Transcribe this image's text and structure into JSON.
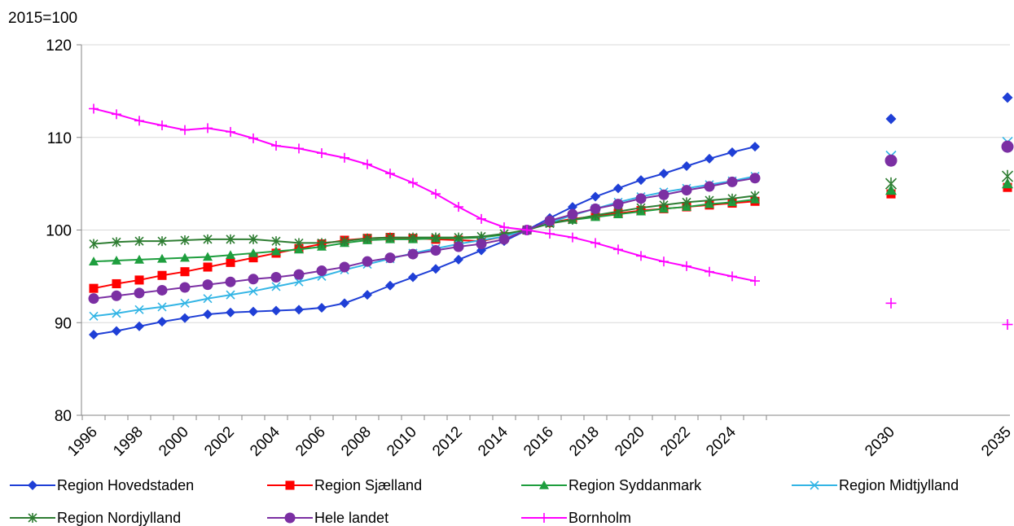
{
  "chart_data": {
    "type": "line",
    "unit_label": "2015=100",
    "ylim": [
      80,
      120
    ],
    "y_ticks": [
      80,
      90,
      100,
      110,
      120
    ],
    "x_tick_labels": [
      "1996",
      "1998",
      "2000",
      "2002",
      "2004",
      "2006",
      "2008",
      "2010",
      "2012",
      "2014",
      "2016",
      "2018",
      "2020",
      "2022",
      "2024",
      "2030",
      "2035"
    ],
    "grid": "horizontal",
    "legend_position": "bottom",
    "years": [
      1996,
      1997,
      1998,
      1999,
      2000,
      2001,
      2002,
      2003,
      2004,
      2005,
      2006,
      2007,
      2008,
      2009,
      2010,
      2011,
      2012,
      2013,
      2014,
      2015,
      2016,
      2017,
      2018,
      2019,
      2020,
      2021,
      2022,
      2023,
      2024,
      2025
    ],
    "forecast_years": [
      2030,
      2035
    ],
    "series": [
      {
        "name": "Region Hovedstaden",
        "color": "#1f3fd6",
        "marker": "diamond",
        "values": [
          88.7,
          89.1,
          89.6,
          90.1,
          90.5,
          90.9,
          91.1,
          91.2,
          91.3,
          91.4,
          91.6,
          92.1,
          93.0,
          94.0,
          94.9,
          95.8,
          96.8,
          97.8,
          98.8,
          100,
          101.3,
          102.5,
          103.6,
          104.5,
          105.4,
          106.1,
          106.9,
          107.7,
          108.4,
          109.0
        ],
        "forecast": [
          112.0,
          114.3
        ]
      },
      {
        "name": "Region Sjælland",
        "color": "#ff0000",
        "marker": "square",
        "values": [
          93.7,
          94.2,
          94.6,
          95.1,
          95.5,
          96.0,
          96.5,
          97.0,
          97.5,
          98.0,
          98.5,
          98.9,
          99.1,
          99.2,
          99.1,
          99.0,
          98.9,
          98.8,
          99.3,
          100,
          100.8,
          101.2,
          101.5,
          101.8,
          102.1,
          102.3,
          102.5,
          102.7,
          102.9,
          103.1
        ],
        "forecast": [
          103.9,
          104.6
        ]
      },
      {
        "name": "Region Syddanmark",
        "color": "#1e9e3e",
        "marker": "triangle",
        "values": [
          96.6,
          96.7,
          96.8,
          96.9,
          97.0,
          97.1,
          97.3,
          97.5,
          97.7,
          97.9,
          98.2,
          98.6,
          98.9,
          99.0,
          99.0,
          99.1,
          99.1,
          99.2,
          99.5,
          100,
          100.8,
          101.1,
          101.4,
          101.7,
          102.0,
          102.3,
          102.5,
          102.8,
          103.0,
          103.3
        ],
        "forecast": [
          104.3,
          105.0
        ]
      },
      {
        "name": "Region Midtjylland",
        "color": "#33b5e5",
        "marker": "x",
        "values": [
          90.7,
          91.0,
          91.4,
          91.7,
          92.1,
          92.6,
          93.0,
          93.4,
          93.9,
          94.4,
          95.0,
          95.7,
          96.3,
          96.9,
          97.5,
          98.0,
          98.5,
          98.9,
          99.3,
          100,
          100.8,
          101.6,
          102.3,
          103.0,
          103.6,
          104.1,
          104.5,
          104.9,
          105.3,
          105.8
        ],
        "forecast": [
          108.0,
          109.5
        ]
      },
      {
        "name": "Region Nordjylland",
        "color": "#2e7d32",
        "marker": "asterisk",
        "values": [
          98.5,
          98.7,
          98.8,
          98.8,
          98.9,
          99.0,
          99.0,
          99.0,
          98.8,
          98.6,
          98.6,
          98.8,
          99.1,
          99.2,
          99.2,
          99.2,
          99.2,
          99.3,
          99.6,
          100,
          100.7,
          101.1,
          101.6,
          102.0,
          102.4,
          102.7,
          103.0,
          103.2,
          103.4,
          103.7
        ],
        "forecast": [
          105.0,
          105.8
        ]
      },
      {
        "name": "Hele landet",
        "color": "#7b2fa3",
        "marker": "circle",
        "values": [
          92.6,
          92.9,
          93.2,
          93.5,
          93.8,
          94.1,
          94.4,
          94.7,
          94.9,
          95.2,
          95.6,
          96.0,
          96.6,
          97.0,
          97.4,
          97.8,
          98.2,
          98.5,
          99.0,
          100,
          101.0,
          101.7,
          102.3,
          102.8,
          103.4,
          103.8,
          104.3,
          104.7,
          105.2,
          105.6
        ],
        "forecast": [
          107.5,
          109.0
        ]
      },
      {
        "name": "Bornholm",
        "color": "#ff00ff",
        "marker": "plus",
        "values": [
          113.1,
          112.5,
          111.8,
          111.3,
          110.8,
          111.0,
          110.6,
          109.9,
          109.1,
          108.8,
          108.3,
          107.8,
          107.1,
          106.1,
          105.1,
          103.9,
          102.5,
          101.2,
          100.3,
          100,
          99.6,
          99.2,
          98.6,
          97.9,
          97.2,
          96.6,
          96.1,
          95.5,
          95.0,
          94.5
        ],
        "forecast": [
          92.1,
          89.8
        ]
      }
    ]
  }
}
